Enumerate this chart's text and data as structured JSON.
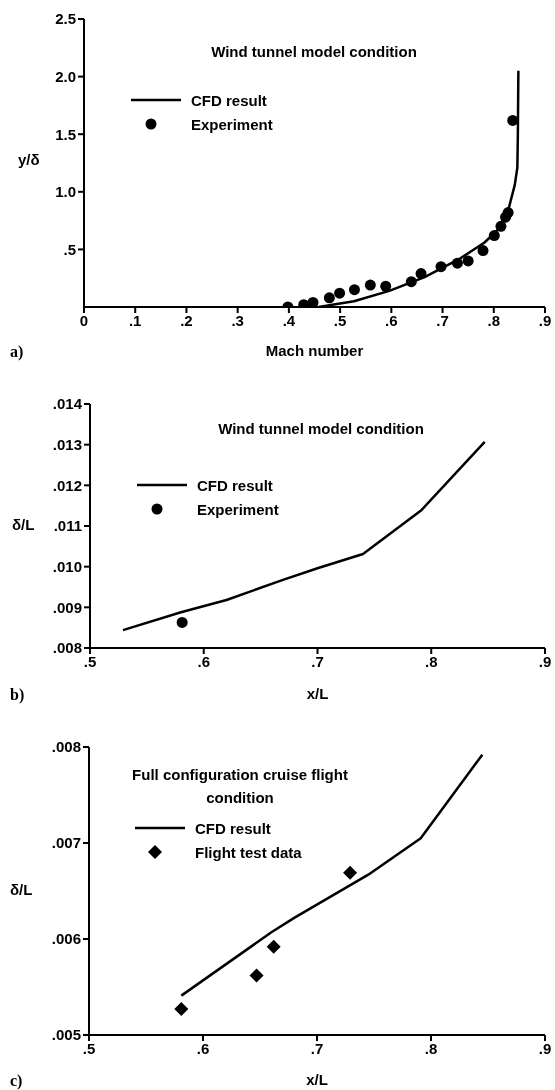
{
  "chart_data": [
    {
      "type": "line",
      "title": "Wind tunnel model condition",
      "xlabel": "Mach number",
      "ylabel": "y/δ",
      "annotations": [
        "a)"
      ],
      "legend": "top left",
      "grid": false,
      "xlim": [
        0,
        0.9
      ],
      "xticks": [
        0,
        {
          "value": 0.1,
          "label": ".1"
        },
        {
          "value": 0.2,
          "label": ".2"
        },
        {
          "value": 0.3,
          "label": ".3"
        },
        {
          "value": 0.4,
          "label": ".4"
        },
        {
          "value": 0.5,
          "label": ".5"
        },
        {
          "value": 0.6,
          "label": ".6"
        },
        {
          "value": 0.7,
          "label": ".7"
        },
        {
          "value": 0.8,
          "label": ".8"
        },
        {
          "value": 0.9,
          "label": ".9"
        }
      ],
      "ylim": [
        0,
        2.5
      ],
      "yticks": [
        {
          "value": 0.5,
          "label": ".5"
        },
        {
          "value": 1,
          "label": "1.0"
        },
        {
          "value": 1.5,
          "label": "1.5"
        },
        {
          "value": 2,
          "label": "2.0"
        },
        {
          "value": 2.5,
          "label": "2.5"
        }
      ],
      "series": [
        {
          "name": "CFD result",
          "type": "line",
          "color": "#000000",
          "x": [
            0.458,
            0.527,
            0.596,
            0.665,
            0.734,
            0.782,
            0.81,
            0.83,
            0.841,
            0.846,
            0.847,
            0.848
          ],
          "values": [
            0,
            0.05,
            0.14,
            0.26,
            0.42,
            0.56,
            0.68,
            0.87,
            1.06,
            1.21,
            1.49,
            2.05
          ]
        },
        {
          "name": "Experiment",
          "type": "scatter",
          "marker": "circle",
          "color": "#000000",
          "x": [
            0.398,
            0.429,
            0.447,
            0.479,
            0.499,
            0.528,
            0.559,
            0.589,
            0.639,
            0.658,
            0.697,
            0.729,
            0.75,
            0.779,
            0.801,
            0.814,
            0.823,
            0.828,
            0.837
          ],
          "values": [
            0,
            0.02,
            0.04,
            0.08,
            0.12,
            0.15,
            0.19,
            0.18,
            0.22,
            0.29,
            0.35,
            0.38,
            0.4,
            0.49,
            0.62,
            0.7,
            0.78,
            0.82,
            1.62
          ]
        }
      ]
    },
    {
      "type": "line",
      "title": "Wind tunnel model condition",
      "xlabel": "x/L",
      "ylabel": "δ/L",
      "annotations": [
        "b)"
      ],
      "legend": "top left",
      "grid": false,
      "xlim": [
        0.5,
        0.9
      ],
      "xticks": [
        {
          "value": 0.5,
          "label": ".5"
        },
        {
          "value": 0.6,
          "label": ".6"
        },
        {
          "value": 0.7,
          "label": ".7"
        },
        {
          "value": 0.8,
          "label": ".8"
        },
        {
          "value": 0.9,
          "label": ".9"
        }
      ],
      "ylim": [
        0.008,
        0.014
      ],
      "yticks": [
        {
          "value": 0.008,
          "label": ".008"
        },
        {
          "value": 0.009,
          "label": ".009"
        },
        {
          "value": 0.01,
          "label": ".010"
        },
        {
          "value": 0.011,
          "label": ".011"
        },
        {
          "value": 0.012,
          "label": ".012"
        },
        {
          "value": 0.013,
          "label": ".013"
        },
        {
          "value": 0.014,
          "label": ".014"
        }
      ],
      "series": [
        {
          "name": "CFD result",
          "type": "line",
          "color": "#000000",
          "x": [
            0.529,
            0.58,
            0.62,
            0.669,
            0.7,
            0.74,
            0.791,
            0.847
          ],
          "values": [
            0.00844,
            0.00888,
            0.00918,
            0.00967,
            0.00996,
            0.01031,
            0.01138,
            0.01307
          ]
        },
        {
          "name": "Experiment",
          "type": "scatter",
          "marker": "circle",
          "color": "#000000",
          "x": [
            0.581
          ],
          "values": [
            0.00863
          ]
        }
      ]
    },
    {
      "type": "line",
      "title": "Full configuration cruise flight condition",
      "xlabel": "x/L",
      "ylabel": "δ/L",
      "annotations": [
        "c)"
      ],
      "legend": "top left",
      "grid": false,
      "xlim": [
        0.5,
        0.9
      ],
      "xticks": [
        {
          "value": 0.5,
          "label": ".5"
        },
        {
          "value": 0.6,
          "label": ".6"
        },
        {
          "value": 0.7,
          "label": ".7"
        },
        {
          "value": 0.8,
          "label": ".8"
        },
        {
          "value": 0.9,
          "label": ".9"
        }
      ],
      "ylim": [
        0.005,
        0.008
      ],
      "yticks": [
        {
          "value": 0.005,
          "label": ".005"
        },
        {
          "value": 0.006,
          "label": ".006"
        },
        {
          "value": 0.007,
          "label": ".007"
        },
        {
          "value": 0.008,
          "label": ".008"
        }
      ],
      "series": [
        {
          "name": "CFD result",
          "type": "line",
          "color": "#000000",
          "x": [
            0.581,
            0.66,
            0.68,
            0.745,
            0.791,
            0.845
          ],
          "values": [
            0.00541,
            0.00607,
            0.00622,
            0.00667,
            0.00705,
            0.00792
          ]
        },
        {
          "name": "Flight test data",
          "type": "scatter",
          "marker": "diamond",
          "color": "#000000",
          "x": [
            0.581,
            0.647,
            0.662,
            0.729
          ],
          "values": [
            0.00527,
            0.00562,
            0.00592,
            0.00669
          ]
        }
      ]
    }
  ]
}
